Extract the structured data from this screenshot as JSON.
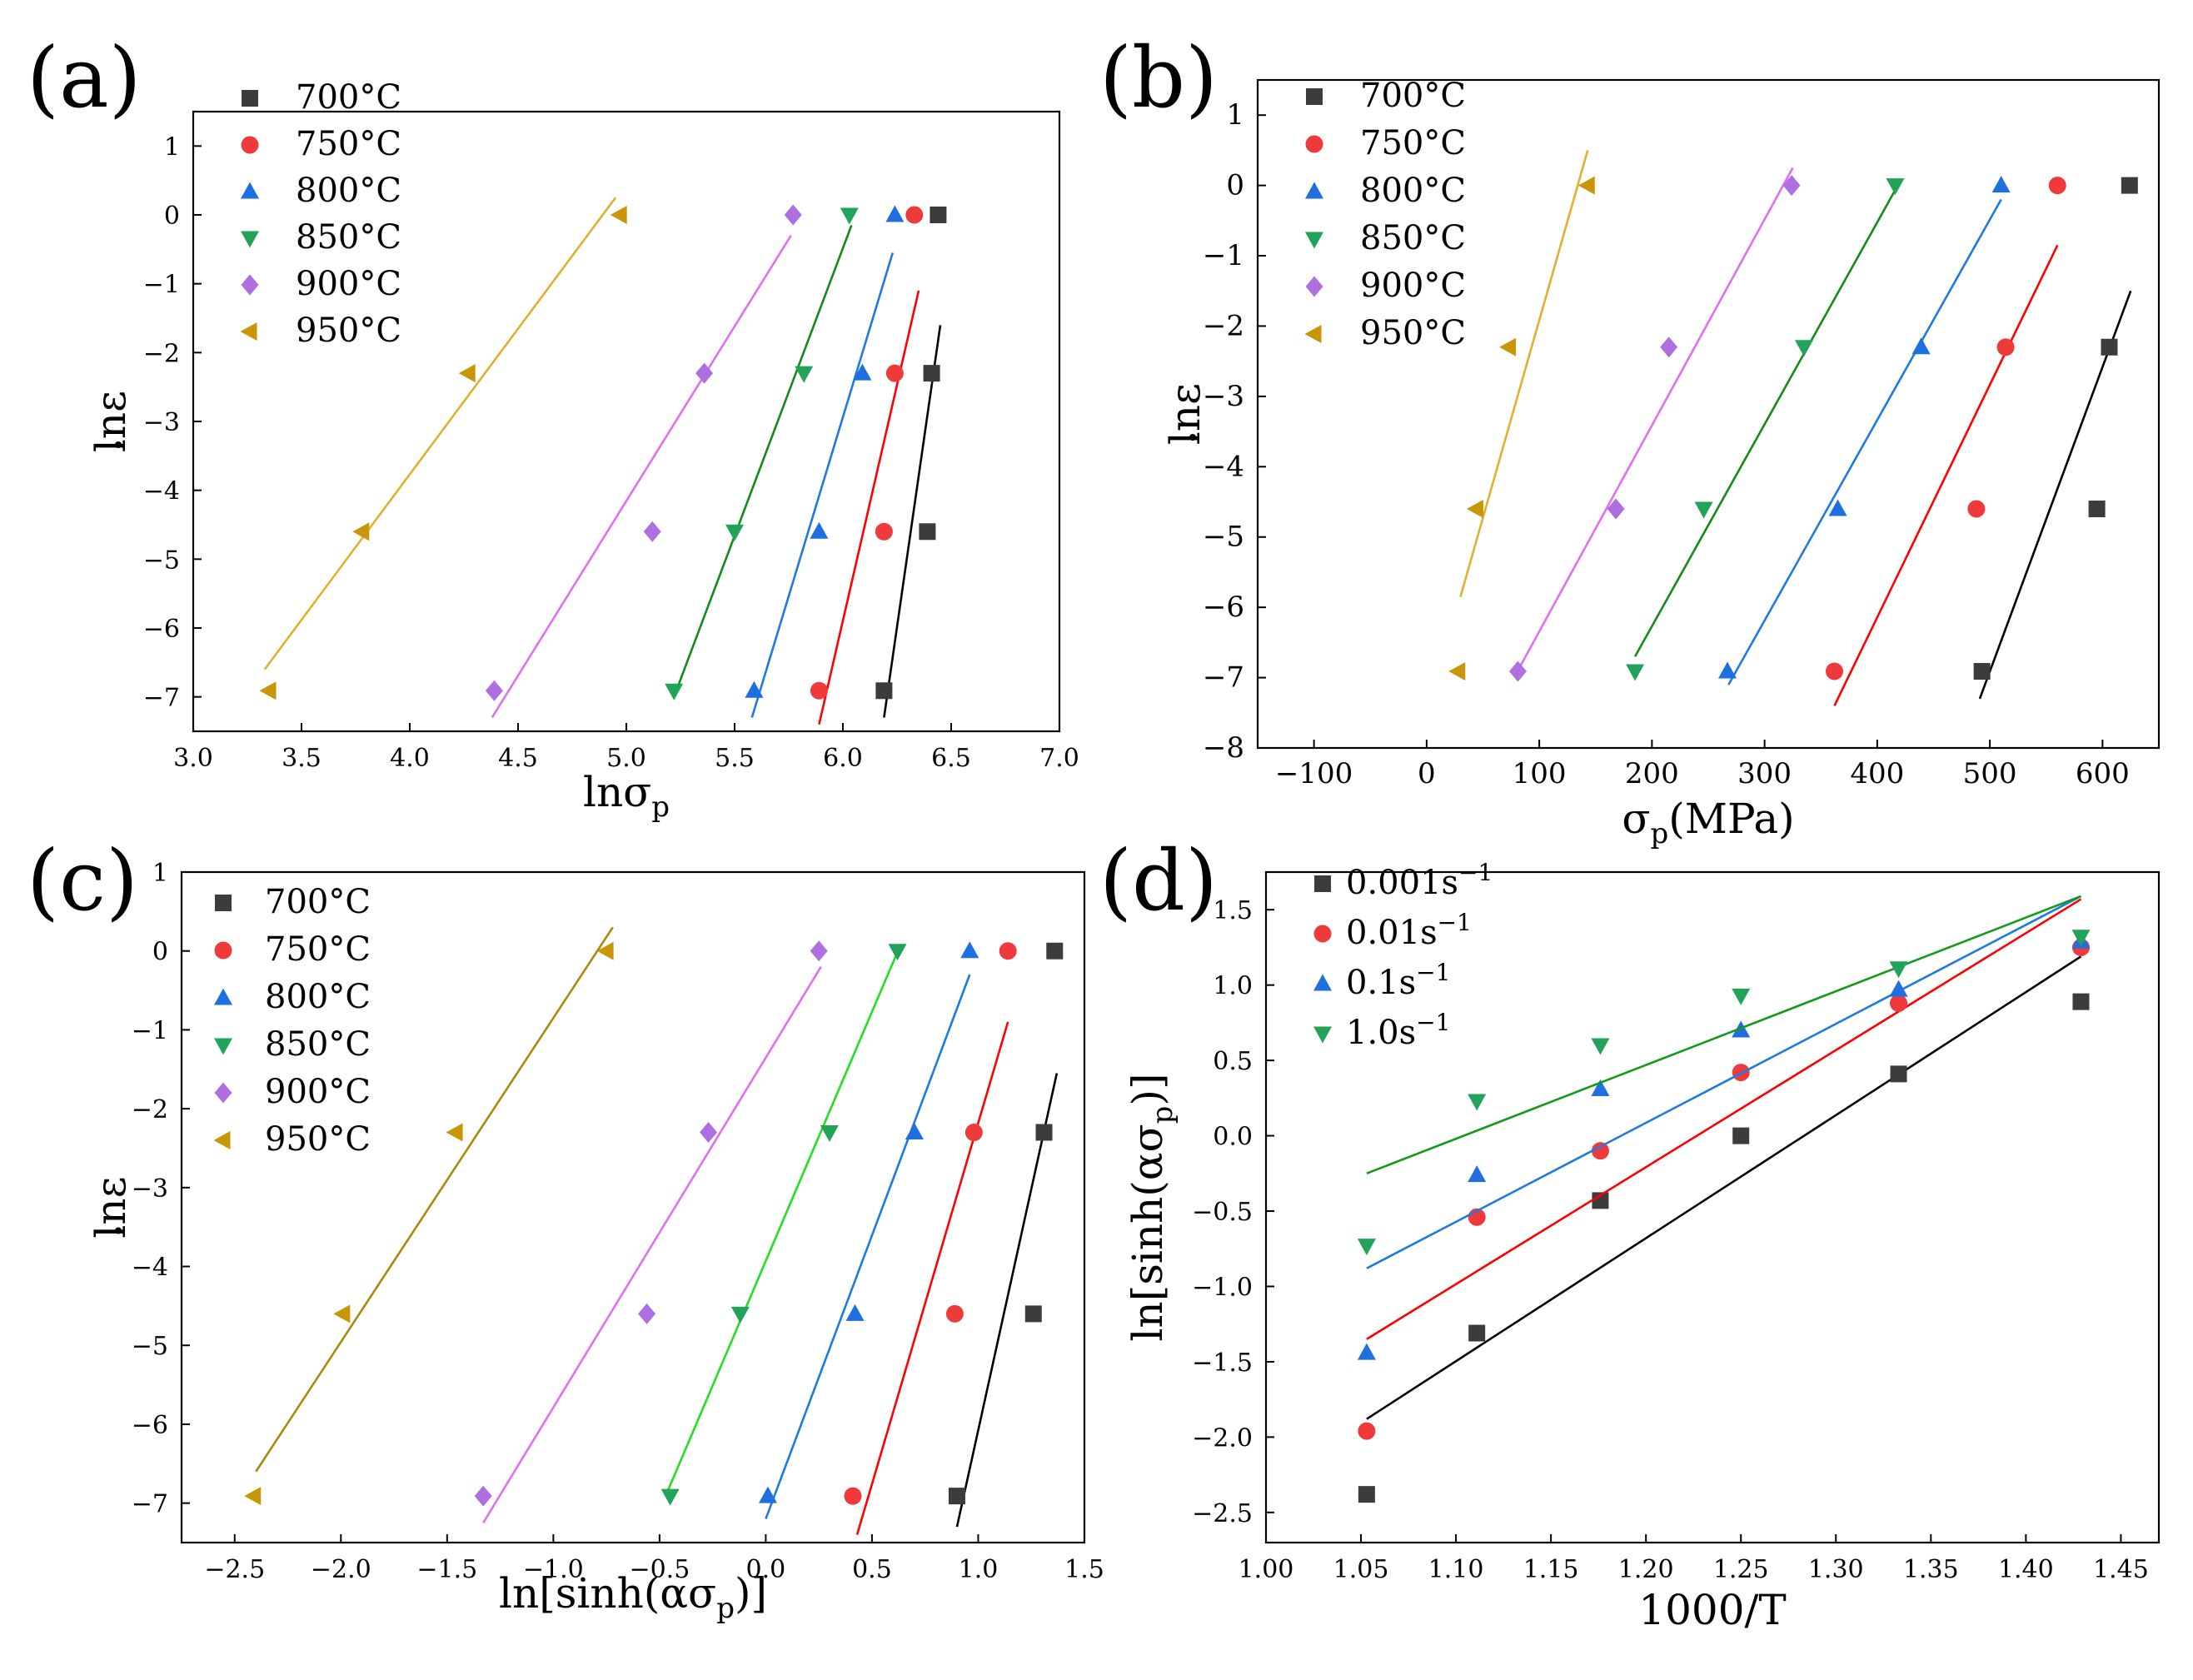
{
  "colors": {
    "700": "#3c3c3c",
    "750": "#ee3a3a",
    "800": "#1f6fe0",
    "850": "#22a35a",
    "900": "#b06fe0",
    "950": "#c9960a",
    "fit_700": "#000000",
    "fit_750": "#ff0000",
    "fit_800": "#1f7ae0",
    "fit_850_a": "#138a1a",
    "fit_850_c": "#22e020",
    "fit_900": "#e070f0",
    "fit_950_a": "#e0b030",
    "fit_950_c": "#a88a10",
    "d_001": "#3c3c3c",
    "d_01": "#ee3a3a",
    "d_1": "#1f6fe0",
    "d_10": "#22a35a",
    "d_fit_001": "#000000",
    "d_fit_01": "#ff0000",
    "d_fit_1": "#1f7ae0",
    "d_fit_10": "#139a1a"
  },
  "chart_data": [
    {
      "id": "a",
      "panel_label": "(a)",
      "type": "scatter",
      "xlabel": "lnσp",
      "ylabel": "lnε̇",
      "xlim": [
        3.0,
        7.0
      ],
      "ylim": [
        -7.5,
        1.5
      ],
      "xticks": [
        3.0,
        3.5,
        4.0,
        4.5,
        5.0,
        5.5,
        6.0,
        6.5,
        7.0
      ],
      "xtick_labels": [
        "3.0",
        "3.5",
        "4.0",
        "4.5",
        "5.0",
        "5.5",
        "6.0",
        "6.5",
        "7.0"
      ],
      "yticks": [
        1,
        0,
        -1,
        -2,
        -3,
        -4,
        -5,
        -6,
        -7
      ],
      "ytick_labels": [
        "1",
        "0",
        "−1",
        "−2",
        "−3",
        "−4",
        "−5",
        "−6",
        "−7"
      ],
      "legend_position": "top-left",
      "series": [
        {
          "name": "700°C",
          "marker": "square",
          "color_key": "700",
          "fit_color_key": "fit_700",
          "points": [
            [
              6.44,
              0
            ],
            [
              6.41,
              -2.3
            ],
            [
              6.39,
              -4.6
            ],
            [
              6.19,
              -6.91
            ]
          ],
          "fit": [
            [
              6.19,
              -7.3
            ],
            [
              6.45,
              -1.6
            ]
          ]
        },
        {
          "name": "750°C",
          "marker": "circle",
          "color_key": "750",
          "fit_color_key": "fit_750",
          "points": [
            [
              6.33,
              0
            ],
            [
              6.24,
              -2.3
            ],
            [
              6.19,
              -4.6
            ],
            [
              5.89,
              -6.91
            ]
          ],
          "fit": [
            [
              5.89,
              -7.4
            ],
            [
              6.35,
              -1.1
            ]
          ]
        },
        {
          "name": "800°C",
          "marker": "triangle-up",
          "color_key": "800",
          "fit_color_key": "fit_800",
          "points": [
            [
              6.24,
              0
            ],
            [
              6.09,
              -2.3
            ],
            [
              5.89,
              -4.6
            ],
            [
              5.59,
              -6.91
            ]
          ],
          "fit": [
            [
              5.58,
              -7.3
            ],
            [
              6.23,
              -0.55
            ]
          ]
        },
        {
          "name": "850°C",
          "marker": "triangle-down",
          "color_key": "850",
          "fit_color_key": "fit_850_a",
          "points": [
            [
              6.03,
              0
            ],
            [
              5.82,
              -2.3
            ],
            [
              5.5,
              -4.6
            ],
            [
              5.22,
              -6.91
            ]
          ],
          "fit": [
            [
              5.22,
              -7.0
            ],
            [
              6.04,
              -0.15
            ]
          ]
        },
        {
          "name": "900°C",
          "marker": "diamond",
          "color_key": "900",
          "fit_color_key": "fit_900",
          "points": [
            [
              5.77,
              0
            ],
            [
              5.36,
              -2.3
            ],
            [
              5.12,
              -4.6
            ],
            [
              4.39,
              -6.91
            ]
          ],
          "fit": [
            [
              4.38,
              -7.3
            ],
            [
              5.76,
              -0.3
            ]
          ]
        },
        {
          "name": "950°C",
          "marker": "triangle-left",
          "color_key": "950",
          "fit_color_key": "fit_950_a",
          "points": [
            [
              4.97,
              0
            ],
            [
              4.27,
              -2.3
            ],
            [
              3.78,
              -4.6
            ],
            [
              3.35,
              -6.91
            ]
          ],
          "fit": [
            [
              3.33,
              -6.6
            ],
            [
              4.95,
              0.25
            ]
          ]
        }
      ]
    },
    {
      "id": "b",
      "panel_label": "(b)",
      "type": "scatter",
      "xlabel": "σp(MPa)",
      "ylabel": "lnε̇",
      "xlim": [
        -150,
        650
      ],
      "ylim": [
        -8,
        1.5
      ],
      "xticks": [
        -100,
        0,
        100,
        200,
        300,
        400,
        500,
        600
      ],
      "xtick_labels": [
        "−100",
        "0",
        "100",
        "200",
        "300",
        "400",
        "500",
        "600"
      ],
      "yticks": [
        1,
        0,
        -1,
        -2,
        -3,
        -4,
        -5,
        -6,
        -7,
        -8
      ],
      "ytick_labels": [
        "1",
        "0",
        "−1",
        "−2",
        "−3",
        "−4",
        "−5",
        "−6",
        "−7",
        "−8"
      ],
      "legend_position": "top-left",
      "series": [
        {
          "name": "700°C",
          "marker": "square",
          "color_key": "700",
          "fit_color_key": "fit_700",
          "points": [
            [
              624,
              0
            ],
            [
              606,
              -2.3
            ],
            [
              595,
              -4.6
            ],
            [
              493,
              -6.91
            ]
          ],
          "fit": [
            [
              491,
              -7.3
            ],
            [
              625,
              -1.5
            ]
          ]
        },
        {
          "name": "750°C",
          "marker": "circle",
          "color_key": "750",
          "fit_color_key": "fit_750",
          "points": [
            [
              560,
              0
            ],
            [
              514,
              -2.3
            ],
            [
              488,
              -4.6
            ],
            [
              362,
              -6.91
            ]
          ],
          "fit": [
            [
              362,
              -7.4
            ],
            [
              560,
              -0.85
            ]
          ]
        },
        {
          "name": "800°C",
          "marker": "triangle-up",
          "color_key": "800",
          "fit_color_key": "fit_800",
          "points": [
            [
              510,
              0
            ],
            [
              439,
              -2.3
            ],
            [
              365,
              -4.6
            ],
            [
              267,
              -6.91
            ]
          ],
          "fit": [
            [
              268,
              -7.1
            ],
            [
              510,
              -0.2
            ]
          ]
        },
        {
          "name": "850°C",
          "marker": "triangle-down",
          "color_key": "850",
          "fit_color_key": "fit_850_a",
          "points": [
            [
              416,
              0
            ],
            [
              335,
              -2.3
            ],
            [
              246,
              -4.6
            ],
            [
              185,
              -6.91
            ]
          ],
          "fit": [
            [
              185,
              -6.7
            ],
            [
              420,
              0.05
            ]
          ]
        },
        {
          "name": "900°C",
          "marker": "diamond",
          "color_key": "900",
          "fit_color_key": "fit_900",
          "points": [
            [
              324,
              0
            ],
            [
              215,
              -2.3
            ],
            [
              168,
              -4.6
            ],
            [
              81,
              -6.91
            ]
          ],
          "fit": [
            [
              81,
              -6.9
            ],
            [
              325,
              0.25
            ]
          ]
        },
        {
          "name": "950°C",
          "marker": "triangle-left",
          "color_key": "950",
          "fit_color_key": "fit_950_a",
          "points": [
            [
              143,
              0
            ],
            [
              73,
              -2.3
            ],
            [
              44,
              -4.6
            ],
            [
              28,
              -6.91
            ]
          ],
          "fit": [
            [
              30,
              -5.85
            ],
            [
              143,
              0.5
            ]
          ]
        }
      ]
    },
    {
      "id": "c",
      "panel_label": "(c)",
      "type": "scatter",
      "xlabel": "ln[sinh(ασp)]",
      "ylabel": "lnε̇",
      "xlim": [
        -2.75,
        1.5
      ],
      "ylim": [
        -7.5,
        1.0
      ],
      "xticks": [
        -2.5,
        -2.0,
        -1.5,
        -1.0,
        -0.5,
        0.0,
        0.5,
        1.0,
        1.5
      ],
      "xtick_labels": [
        "−2.5",
        "−2.0",
        "−1.5",
        "−1.0",
        "−0.5",
        "0.0",
        "0.5",
        "1.0",
        "1.5"
      ],
      "yticks": [
        1,
        0,
        -1,
        -2,
        -3,
        -4,
        -5,
        -6,
        -7
      ],
      "ytick_labels": [
        "1",
        "0",
        "−1",
        "−2",
        "−3",
        "−4",
        "−5",
        "−6",
        "−7"
      ],
      "legend_position": "top-left",
      "series": [
        {
          "name": "700°C",
          "marker": "square",
          "color_key": "700",
          "fit_color_key": "fit_700",
          "points": [
            [
              1.36,
              0
            ],
            [
              1.31,
              -2.3
            ],
            [
              1.26,
              -4.6
            ],
            [
              0.9,
              -6.91
            ]
          ],
          "fit": [
            [
              0.9,
              -7.3
            ],
            [
              1.37,
              -1.55
            ]
          ]
        },
        {
          "name": "750°C",
          "marker": "circle",
          "color_key": "750",
          "fit_color_key": "fit_750",
          "points": [
            [
              1.14,
              0
            ],
            [
              0.98,
              -2.3
            ],
            [
              0.89,
              -4.6
            ],
            [
              0.41,
              -6.91
            ]
          ],
          "fit": [
            [
              0.43,
              -7.4
            ],
            [
              1.14,
              -0.9
            ]
          ]
        },
        {
          "name": "800°C",
          "marker": "triangle-up",
          "color_key": "800",
          "fit_color_key": "fit_800",
          "points": [
            [
              0.96,
              0
            ],
            [
              0.7,
              -2.3
            ],
            [
              0.42,
              -4.6
            ],
            [
              0.01,
              -6.91
            ]
          ],
          "fit": [
            [
              0.0,
              -7.2
            ],
            [
              0.96,
              -0.3
            ]
          ]
        },
        {
          "name": "850°C",
          "marker": "triangle-down",
          "color_key": "850",
          "fit_color_key": "fit_850_c",
          "points": [
            [
              0.62,
              0
            ],
            [
              0.3,
              -2.3
            ],
            [
              -0.12,
              -4.6
            ],
            [
              -0.45,
              -6.91
            ]
          ],
          "fit": [
            [
              -0.47,
              -6.9
            ],
            [
              0.63,
              0.05
            ]
          ]
        },
        {
          "name": "900°C",
          "marker": "diamond",
          "color_key": "900",
          "fit_color_key": "fit_900",
          "points": [
            [
              0.25,
              0
            ],
            [
              -0.27,
              -2.3
            ],
            [
              -0.56,
              -4.6
            ],
            [
              -1.33,
              -6.91
            ]
          ],
          "fit": [
            [
              -1.33,
              -7.25
            ],
            [
              0.26,
              -0.2
            ]
          ]
        },
        {
          "name": "950°C",
          "marker": "triangle-left",
          "color_key": "950",
          "fit_color_key": "fit_950_c",
          "points": [
            [
              -0.75,
              0
            ],
            [
              -1.46,
              -2.3
            ],
            [
              -1.99,
              -4.6
            ],
            [
              -2.41,
              -6.91
            ]
          ],
          "fit": [
            [
              -2.4,
              -6.6
            ],
            [
              -0.72,
              0.3
            ]
          ]
        }
      ]
    },
    {
      "id": "d",
      "panel_label": "(d)",
      "type": "scatter",
      "xlabel": "1000/T",
      "ylabel": "ln[sinh(ασp)]",
      "xlim": [
        1.0,
        1.47
      ],
      "ylim": [
        -2.7,
        1.75
      ],
      "xticks": [
        1.0,
        1.05,
        1.1,
        1.15,
        1.2,
        1.25,
        1.3,
        1.35,
        1.4,
        1.45
      ],
      "xtick_labels": [
        "1.00",
        "1.05",
        "1.10",
        "1.15",
        "1.20",
        "1.25",
        "1.30",
        "1.35",
        "1.40",
        "1.45"
      ],
      "yticks": [
        1.5,
        1.0,
        0.5,
        0.0,
        -0.5,
        -1.0,
        -1.5,
        -2.0,
        -2.5
      ],
      "ytick_labels": [
        "1.5",
        "1.0",
        "0.5",
        "0.0",
        "−0.5",
        "−1.0",
        "−1.5",
        "−2.0",
        "−2.5"
      ],
      "legend_position": "top-left",
      "series": [
        {
          "name": "0.001s",
          "sup": "−1",
          "marker": "square",
          "color_key": "d_001",
          "fit_color_key": "d_fit_001",
          "points": [
            [
              1.053,
              -2.38
            ],
            [
              1.111,
              -1.31
            ],
            [
              1.176,
              -0.43
            ],
            [
              1.25,
              0.0
            ],
            [
              1.333,
              0.41
            ],
            [
              1.429,
              0.89
            ]
          ],
          "fit": [
            [
              1.053,
              -1.88
            ],
            [
              1.429,
              1.19
            ]
          ]
        },
        {
          "name": "0.01s",
          "sup": "−1",
          "marker": "circle",
          "color_key": "d_01",
          "fit_color_key": "d_fit_01",
          "points": [
            [
              1.053,
              -1.96
            ],
            [
              1.111,
              -0.54
            ],
            [
              1.176,
              -0.1
            ],
            [
              1.25,
              0.42
            ],
            [
              1.333,
              0.88
            ],
            [
              1.429,
              1.25
            ]
          ],
          "fit": [
            [
              1.053,
              -1.35
            ],
            [
              1.429,
              1.57
            ]
          ]
        },
        {
          "name": "0.1s",
          "sup": "−1",
          "marker": "triangle-up",
          "color_key": "d_1",
          "fit_color_key": "d_fit_1",
          "points": [
            [
              1.053,
              -1.44
            ],
            [
              1.111,
              -0.26
            ],
            [
              1.176,
              0.31
            ],
            [
              1.25,
              0.7
            ],
            [
              1.333,
              0.97
            ],
            [
              1.429,
              1.29
            ]
          ],
          "fit": [
            [
              1.053,
              -0.88
            ],
            [
              1.429,
              1.59
            ]
          ]
        },
        {
          "name": "1.0s",
          "sup": "−1",
          "marker": "triangle-down",
          "color_key": "d_10",
          "fit_color_key": "d_fit_10",
          "points": [
            [
              1.053,
              -0.73
            ],
            [
              1.111,
              0.23
            ],
            [
              1.176,
              0.6
            ],
            [
              1.25,
              0.93
            ],
            [
              1.333,
              1.11
            ],
            [
              1.429,
              1.32
            ]
          ],
          "fit": [
            [
              1.053,
              -0.25
            ],
            [
              1.429,
              1.59
            ]
          ]
        }
      ]
    }
  ]
}
